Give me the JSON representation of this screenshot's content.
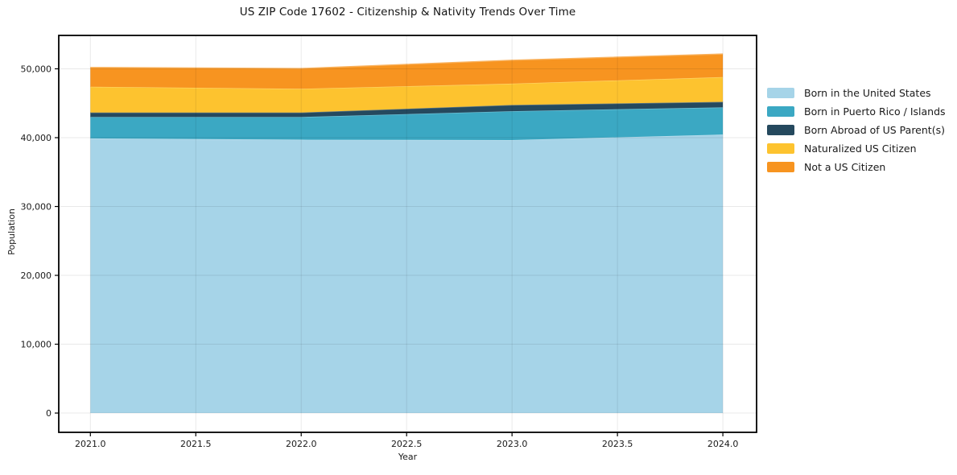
{
  "title": "US ZIP Code 17602 - Citizenship & Nativity Trends Over Time",
  "chart_data": {
    "type": "area",
    "stacked": true,
    "title": "US ZIP Code 17602 - Citizenship & Nativity Trends Over Time",
    "xlabel": "Year",
    "ylabel": "Population",
    "x": [
      2021,
      2022,
      2023,
      2024
    ],
    "series": [
      {
        "name": "Born in the United States",
        "color": "#a6d4e8",
        "values": [
          39900,
          39700,
          39650,
          40450
        ]
      },
      {
        "name": "Born in Puerto Rico / Islands",
        "color": "#3ba8c3",
        "values": [
          3100,
          3300,
          4200,
          3950
        ]
      },
      {
        "name": "Born Abroad of US Parent(s)",
        "color": "#25495e",
        "values": [
          650,
          650,
          900,
          800
        ]
      },
      {
        "name": "Naturalized US Citizen",
        "color": "#fdc32f",
        "values": [
          3750,
          3450,
          3100,
          3600
        ]
      },
      {
        "name": "Not a US Citizen",
        "color": "#f79420",
        "values": [
          2800,
          2950,
          3400,
          3350
        ]
      }
    ],
    "stack_totals": [
      50200,
      50050,
      51250,
      52150
    ],
    "x_ticks": [
      2021.0,
      2021.5,
      2022.0,
      2022.5,
      2023.0,
      2023.5,
      2024.0
    ],
    "x_tick_labels": [
      "2021.0",
      "2021.5",
      "2022.0",
      "2022.5",
      "2023.0",
      "2023.5",
      "2024.0"
    ],
    "y_ticks": [
      0,
      10000,
      20000,
      30000,
      40000,
      50000
    ],
    "y_tick_labels": [
      "0",
      "10,000",
      "20,000",
      "30,000",
      "40,000",
      "50,000"
    ],
    "xlim": [
      2020.85,
      2024.16
    ],
    "ylim": [
      -2800,
      54850
    ],
    "grid": true,
    "legend_position": "outside-right",
    "frame_color": "#000000",
    "tick_label_color": "#1a1a1a",
    "background": "#ffffff"
  }
}
